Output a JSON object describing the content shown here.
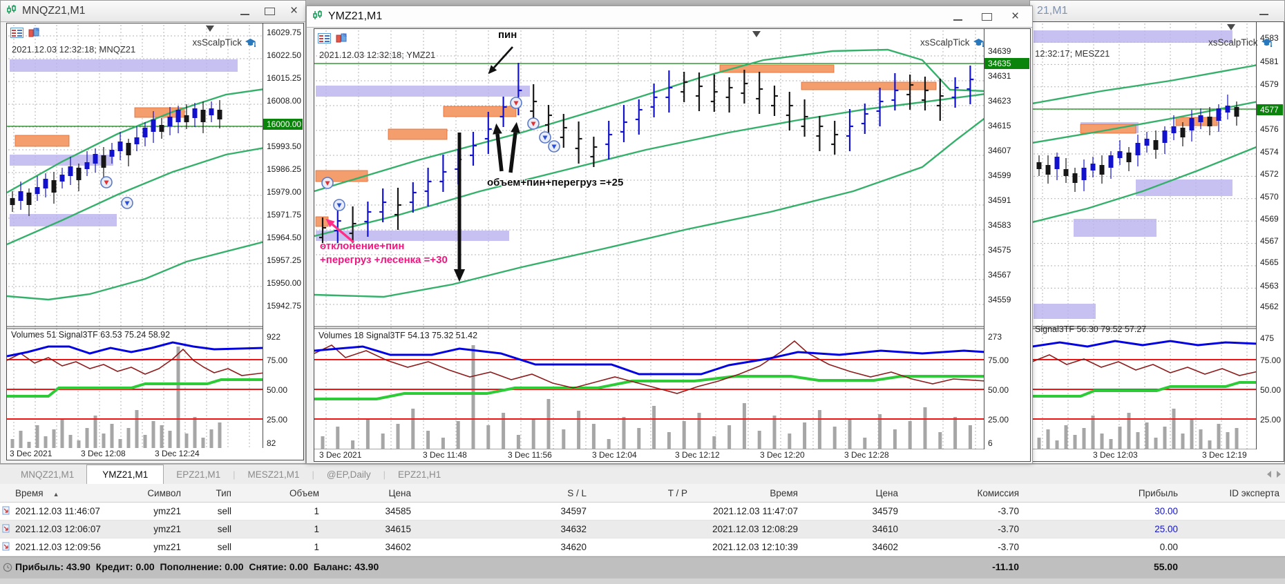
{
  "windows": {
    "left": {
      "title": "MNQZ21,M1",
      "info": "2021.12.03 12:32:18; MNQZ21",
      "overlay": "xsScalpTick",
      "indicator": "Volumes 51 Signal3TF 63.53 75.24 58.92",
      "current_price": "16000.00",
      "prices": [
        "16029.75",
        "16022.50",
        "16015.25",
        "16008.00",
        "15993.50",
        "15986.25",
        "15979.00",
        "15971.75",
        "15964.50",
        "15957.25",
        "15950.00",
        "15942.75"
      ],
      "ind_scale": [
        "922",
        "75.00",
        "50.00",
        "25.00",
        "82"
      ],
      "times": [
        "3 Dec 2021",
        "3 Dec 12:08",
        "3 Dec 12:24"
      ]
    },
    "center": {
      "title": "YMZ21,M1",
      "info": "2021.12.03 12:32:18; YMZ21",
      "overlay": "xsScalpTick",
      "indicator": "Volumes 18 Signal3TF 54.13 75.32 51.42",
      "current_price": "34635",
      "prices": [
        "34639",
        "34631",
        "34623",
        "34615",
        "34607",
        "34599",
        "34591",
        "34583",
        "34575",
        "34567",
        "34559"
      ],
      "ind_scale": [
        "273",
        "75.00",
        "50.00",
        "25.00",
        "6"
      ],
      "times": [
        "3 Dec 2021",
        "3 Dec 11:48",
        "3 Dec 11:56",
        "3 Dec 12:04",
        "3 Dec 12:12",
        "3 Dec 12:20",
        "3 Dec 12:28"
      ],
      "annotations": {
        "pin": "пин",
        "note1": "объем+пин+перегруз =+25",
        "note2a": "отклонение+пин",
        "note2b": "+перегруз +лесенка =+30"
      }
    },
    "right": {
      "title": "21,M1",
      "info": "12:32:17; MESZ21",
      "overlay": "xsScalpTick",
      "indicator": "Signal3TF 56.30 79.52 57.27",
      "current_price": "4577",
      "prices": [
        "4583",
        "4581",
        "4579",
        "4576",
        "4574",
        "4572",
        "4570",
        "4569",
        "4567",
        "4565",
        "4563",
        "4562"
      ],
      "ind_scale": [
        "475",
        "75.00",
        "50.00",
        "25.00"
      ],
      "times": [
        "3 Dec 12:03",
        "3 Dec 12:19"
      ]
    }
  },
  "tabs": [
    "MNQZ21,M1",
    "YMZ21,M1",
    "EPZ21,M1",
    "MESZ21,M1",
    "@EP,Daily",
    "EPZ21,H1"
  ],
  "icons": {
    "sort_asc": "▲"
  },
  "history": {
    "headers": {
      "time_open": "Время",
      "symbol": "Символ",
      "type": "Тип",
      "volume": "Объем",
      "price_open": "Цена",
      "sl": "S / L",
      "tp": "T / P",
      "time_close": "Время",
      "price_close": "Цена",
      "commission": "Комиссия",
      "profit": "Прибыль",
      "expert": "ID эксперта"
    },
    "rows": [
      {
        "time_open": "2021.12.03 11:46:07",
        "symbol": "ymz21",
        "type": "sell",
        "volume": "1",
        "price_open": "34585",
        "sl": "34597",
        "tp": "",
        "time_close": "2021.12.03 11:47:07",
        "price_close": "34579",
        "commission": "-3.70",
        "profit": "30.00",
        "expert": ""
      },
      {
        "time_open": "2021.12.03 12:06:07",
        "symbol": "ymz21",
        "type": "sell",
        "volume": "1",
        "price_open": "34615",
        "sl": "34632",
        "tp": "",
        "time_close": "2021.12.03 12:08:29",
        "price_close": "34610",
        "commission": "-3.70",
        "profit": "25.00",
        "expert": ""
      },
      {
        "time_open": "2021.12.03 12:09:56",
        "symbol": "ymz21",
        "type": "sell",
        "volume": "1",
        "price_open": "34602",
        "sl": "34620",
        "tp": "",
        "time_close": "2021.12.03 12:10:39",
        "price_close": "34602",
        "commission": "-3.70",
        "profit": "0.00",
        "expert": ""
      }
    ],
    "summary": {
      "account": "Прибыль: 43.90  Кредит: 0.00  Пополнение: 0.00  Снятие: 0.00  Баланс: 43.90",
      "commission": "-11.10",
      "profit": "55.00"
    }
  }
}
